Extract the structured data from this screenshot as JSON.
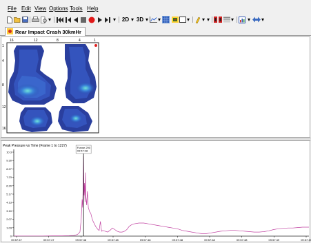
{
  "menu": {
    "items": [
      {
        "key": "file",
        "label": "File"
      },
      {
        "key": "edit",
        "label": "Edit"
      },
      {
        "key": "view",
        "label": "View"
      },
      {
        "key": "options",
        "label": "Options"
      },
      {
        "key": "tools",
        "label": "Tools"
      },
      {
        "key": "help",
        "label": "Help"
      }
    ]
  },
  "toolbar": {
    "view_2d": "2D",
    "view_3d": "3D"
  },
  "tab": {
    "label": "Rear Impact Crash 30kmHr"
  },
  "heatmap": {
    "column_labels": [
      "16",
      "12",
      "8",
      "4",
      "1"
    ],
    "row_labels": [
      "1",
      "4",
      "8",
      "12",
      "16"
    ]
  },
  "graph": {
    "title": "Peak Pressure vs Time (Frame 1 to 1227)",
    "tooltip": {
      "line1": "Frame 290",
      "line2": "09:57:48"
    }
  },
  "chart_data": {
    "type": "line",
    "title": "Peak Pressure vs Time (Frame 1 to 1227)",
    "x_tick_labels": [
      "09:57:47",
      "09:57:47",
      "09:57:48",
      "09:57:48",
      "09:57:48",
      "09:57:48",
      "09:57:48",
      "09:57:48",
      "09:57:49",
      "09:57:49"
    ],
    "y_tick_labels": [
      "0",
      "1.03",
      "2.07",
      "3.10",
      "4.13",
      "5.17",
      "6.20",
      "7.23",
      "8.27",
      "9.30",
      "10.3"
    ],
    "ylim": [
      0,
      10.3
    ],
    "xlim": [
      0,
      1227
    ],
    "cursor_frame": 290,
    "series": [
      {
        "color": "#c040a0",
        "x": [
          0,
          40,
          80,
          120,
          160,
          200,
          230,
          250,
          265,
          275,
          280,
          284,
          286,
          288,
          290,
          292,
          294,
          296,
          298,
          300,
          303,
          306,
          310,
          315,
          320,
          325,
          330,
          335,
          340,
          345,
          350,
          355,
          360,
          365,
          370,
          380,
          390,
          400,
          410,
          420,
          430,
          440,
          450,
          460,
          470,
          480,
          490,
          500,
          520,
          540,
          560,
          580,
          600,
          620,
          640,
          660,
          680,
          700,
          720,
          740,
          760,
          780,
          800,
          820,
          840,
          860,
          880,
          900,
          920,
          940,
          960,
          980,
          1000,
          1020,
          1040,
          1060,
          1080,
          1100,
          1120,
          1140,
          1160,
          1180,
          1200,
          1227
        ],
        "y": [
          0.02,
          0.02,
          0.02,
          0.02,
          0.03,
          0.03,
          0.05,
          0.08,
          0.2,
          0.5,
          2.0,
          4.5,
          3.5,
          6.0,
          9.8,
          5.0,
          6.5,
          4.2,
          7.8,
          4.8,
          3.8,
          5.5,
          3.5,
          3.0,
          2.8,
          2.2,
          1.8,
          1.5,
          1.2,
          1.0,
          0.8,
          0.7,
          1.8,
          0.6,
          0.7,
          0.6,
          0.5,
          0.7,
          1.0,
          0.8,
          0.6,
          0.5,
          0.5,
          0.6,
          0.8,
          1.2,
          1.4,
          1.5,
          1.6,
          1.6,
          1.5,
          1.4,
          1.3,
          1.2,
          1.1,
          1.0,
          0.9,
          0.7,
          0.6,
          0.5,
          0.4,
          0.3,
          0.3,
          0.4,
          0.5,
          0.6,
          0.65,
          0.7,
          0.7,
          0.65,
          0.6,
          0.55,
          0.5,
          0.5,
          0.55,
          0.65,
          0.8,
          0.9,
          0.95,
          1.0,
          1.0,
          1.05,
          1.1,
          1.1
        ]
      }
    ]
  }
}
